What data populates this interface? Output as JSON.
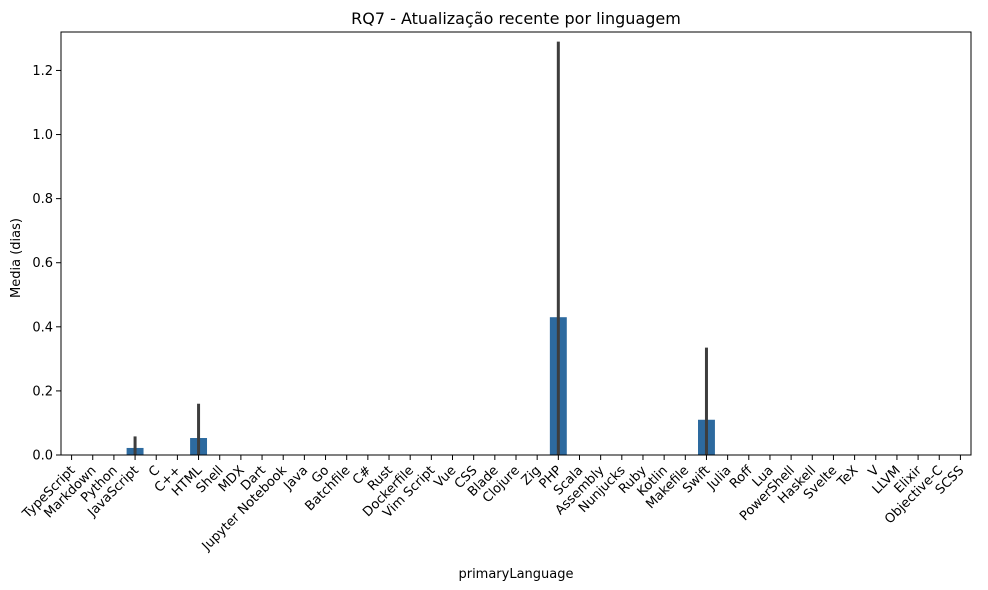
{
  "chart_data": {
    "type": "bar",
    "title": "RQ7 - Atualização recente por linguagem",
    "xlabel": "primaryLanguage",
    "ylabel": "Media (dias)",
    "ylim": [
      0,
      1.32
    ],
    "yticks": [
      "0.0",
      "0.2",
      "0.4",
      "0.6",
      "0.8",
      "1.0",
      "1.2"
    ],
    "grid": false,
    "categories": [
      "TypeScript",
      "Markdown",
      "Python",
      "JavaScript",
      "C",
      "C++",
      "HTML",
      "Shell",
      "MDX",
      "Dart",
      "Jupyter Notebook",
      "Java",
      "Go",
      "Batchfile",
      "C#",
      "Rust",
      "Dockerfile",
      "Vim Script",
      "Vue",
      "CSS",
      "Blade",
      "Clojure",
      "Zig",
      "PHP",
      "Scala",
      "Assembly",
      "Nunjucks",
      "Ruby",
      "Kotlin",
      "Makefile",
      "Swift",
      "Julia",
      "Roff",
      "Lua",
      "PowerShell",
      "Haskell",
      "Svelte",
      "TeX",
      "V",
      "LLVM",
      "Elixir",
      "Objective-C",
      "SCSS"
    ],
    "series": [
      {
        "values": [
          0,
          0,
          0,
          0.022,
          0,
          0,
          0.053,
          0,
          0,
          0,
          0,
          0,
          0,
          0,
          0,
          0,
          0,
          0,
          0,
          0,
          0,
          0,
          0,
          0.43,
          0,
          0,
          0,
          0,
          0,
          0,
          0.11,
          0,
          0,
          0,
          0,
          0,
          0,
          0,
          0,
          0,
          0,
          0,
          0
        ],
        "ci_low": [
          0,
          0,
          0,
          0,
          0,
          0,
          0,
          0,
          0,
          0,
          0,
          0,
          0,
          0,
          0,
          0,
          0,
          0,
          0,
          0,
          0,
          0,
          0,
          0,
          0,
          0,
          0,
          0,
          0,
          0,
          0,
          0,
          0,
          0,
          0,
          0,
          0,
          0,
          0,
          0,
          0,
          0,
          0
        ],
        "ci_high": [
          0,
          0,
          0,
          0.058,
          0,
          0,
          0.16,
          0,
          0,
          0,
          0,
          0,
          0,
          0,
          0,
          0,
          0,
          0,
          0,
          0,
          0,
          0,
          0,
          1.29,
          0,
          0,
          0,
          0,
          0,
          0,
          0.335,
          0,
          0,
          0,
          0,
          0,
          0,
          0,
          0,
          0,
          0,
          0,
          0
        ]
      }
    ],
    "colors": {
      "bar": "#2d6a9f",
      "errorbar": "#3d3d3d",
      "axis": "#000000"
    },
    "error_bars": true
  }
}
